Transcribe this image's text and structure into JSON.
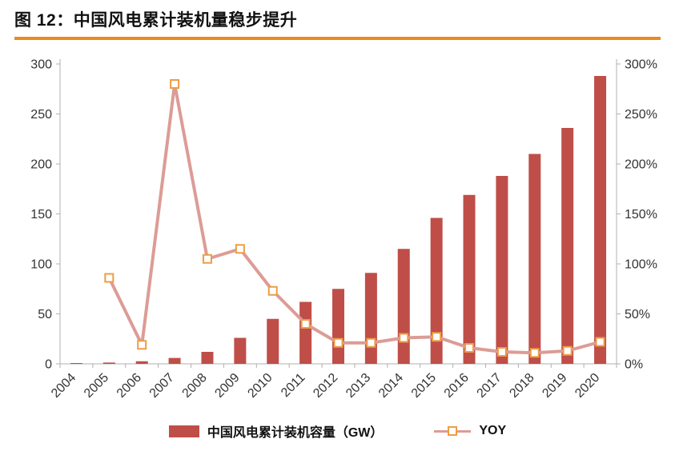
{
  "figure": {
    "title": "图 12：中国风电累计装机量稳步提升"
  },
  "colors": {
    "bar": "#bf4e48",
    "line": "#dc9c96",
    "marker": "#ee9d45",
    "title_rule": "#ea8b1f",
    "axis": "#b0b0b0",
    "text": "#333333"
  },
  "chart_data": {
    "type": "bar",
    "subtype": "combo-bar-line",
    "title": "中国风电累计装机量稳步提升",
    "categories": [
      "2004",
      "2005",
      "2006",
      "2007",
      "2008",
      "2009",
      "2010",
      "2011",
      "2012",
      "2013",
      "2014",
      "2015",
      "2016",
      "2017",
      "2018",
      "2019",
      "2020"
    ],
    "series": [
      {
        "name": "中国风电累计装机容量（GW）",
        "type": "bar",
        "axis": "left",
        "values": [
          0.8,
          1.3,
          2.6,
          5.9,
          12,
          26,
          45,
          62,
          75,
          91,
          115,
          146,
          169,
          188,
          210,
          236,
          288
        ]
      },
      {
        "name": "YOY",
        "type": "line",
        "axis": "right",
        "values": [
          null,
          86,
          19,
          280,
          105,
          115,
          73,
          40,
          21,
          21,
          26,
          27,
          16,
          12,
          11,
          13,
          22
        ]
      }
    ],
    "left_axis": {
      "min": 0,
      "max": 300,
      "ticks": [
        0,
        50,
        100,
        150,
        200,
        250,
        300
      ]
    },
    "right_axis": {
      "min": 0,
      "max": 300,
      "tick_labels": [
        "0%",
        "50%",
        "100%",
        "150%",
        "200%",
        "250%",
        "300%"
      ]
    },
    "grid": false,
    "legend_position": "bottom",
    "legend": [
      "中国风电累计装机容量（GW）",
      "YOY"
    ]
  }
}
